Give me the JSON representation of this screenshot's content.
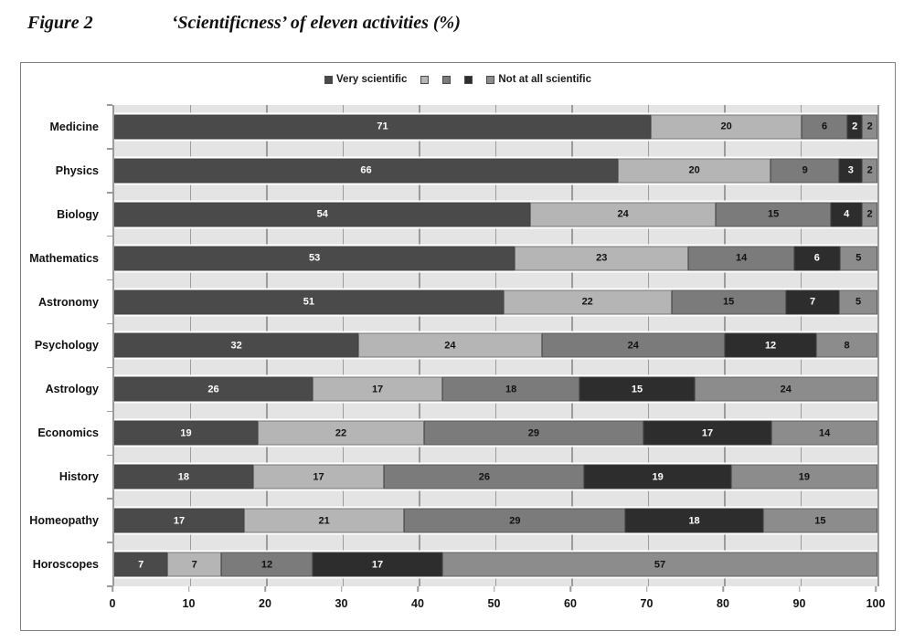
{
  "figure": {
    "label": "Figure 2",
    "title": "‘Scientificness’ of eleven activities (%)"
  },
  "chart_data": {
    "type": "bar",
    "orientation": "horizontal",
    "stacked": true,
    "title": "‘Scientificness’ of eleven activities (%)",
    "categories": [
      "Medicine",
      "Physics",
      "Biology",
      "Mathematics",
      "Astronomy",
      "Psychology",
      "Astrology",
      "Economics",
      "History",
      "Homeopathy",
      "Horoscopes"
    ],
    "series": [
      {
        "name": "Very scientific",
        "values": [
          71,
          66,
          54,
          53,
          51,
          32,
          26,
          19,
          18,
          17,
          7
        ]
      },
      {
        "name": "",
        "values": [
          20,
          20,
          24,
          23,
          22,
          24,
          17,
          22,
          17,
          21,
          7
        ]
      },
      {
        "name": "",
        "values": [
          6,
          9,
          15,
          14,
          15,
          24,
          18,
          29,
          26,
          29,
          12
        ]
      },
      {
        "name": "",
        "values": [
          2,
          3,
          4,
          6,
          7,
          12,
          15,
          17,
          19,
          18,
          17
        ]
      },
      {
        "name": "Not at all scientific",
        "values": [
          2,
          2,
          2,
          5,
          5,
          8,
          24,
          14,
          19,
          15,
          57
        ]
      }
    ],
    "legend_entries": [
      "Very scientific",
      "",
      "",
      "",
      "Not at all scientific"
    ],
    "legend_position": "top-center",
    "colors": [
      "#4a4a4a",
      "#b5b5b5",
      "#7b7b7b",
      "#2d2d2d",
      "#8c8c8c"
    ],
    "value_label_colors": [
      "#ffffff",
      "#111111",
      "#111111",
      "#ffffff",
      "#111111"
    ],
    "xlim": [
      0,
      100
    ],
    "x_ticks": [
      0,
      10,
      20,
      30,
      40,
      50,
      60,
      70,
      80,
      90,
      100
    ],
    "grid": "vertical",
    "plot_bg": "#e4e4e4",
    "gridline_color": "#9b9b9b",
    "value_labels_shown": true
  }
}
